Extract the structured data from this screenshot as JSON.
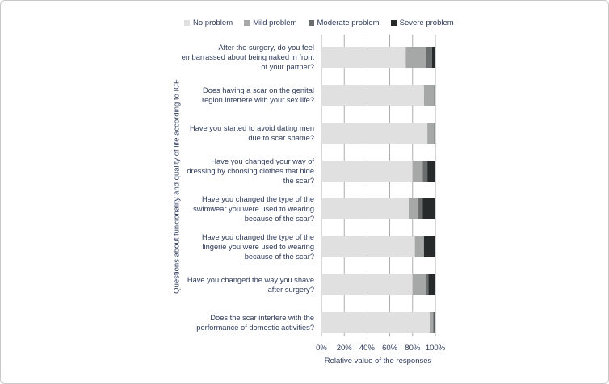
{
  "chart_data": {
    "type": "bar",
    "orientation": "horizontal",
    "stacked": true,
    "xlabel": "Relative value of the responses",
    "ylabel": "Questions about funcionality and quality of life according to ICF",
    "xlim": [
      0,
      100
    ],
    "xticks": [
      "0%",
      "20%",
      "40%",
      "60%",
      "80%",
      "100%"
    ],
    "grid": true,
    "legend_position": "top",
    "categories": [
      "After the surgery, do you feel embarrassed about being naked in front of your partner?",
      "Does having a scar on the genital region interfere with your sex life?",
      "Have you started to avoid dating men due to scar shame?",
      "Have you changed your way of dressing by choosing clothes that hide the scar?",
      "Have you changed the type of the swimwear you were used to wearing because of the scar?",
      "Have you changed the type of the lingerie you were used to wearing because of the scar?",
      "Have you changed the way you shave after surgery?",
      "Does the scar interfere with the performance of domestic activities?"
    ],
    "series": [
      {
        "name": "No problem",
        "color": "#e0e0e0",
        "values": [
          74,
          90,
          93,
          80,
          77,
          82,
          80,
          95
        ]
      },
      {
        "name": "Mild problem",
        "color": "#a6a8a8",
        "values": [
          18,
          9,
          6,
          9,
          8,
          8,
          12,
          3
        ]
      },
      {
        "name": "Moderate problem",
        "color": "#6b6e6f",
        "values": [
          5,
          1,
          1,
          4,
          4,
          0,
          2,
          1
        ]
      },
      {
        "name": "Severe problem",
        "color": "#262a2b",
        "values": [
          3,
          0,
          0,
          7,
          11,
          10,
          6,
          1
        ]
      }
    ]
  }
}
